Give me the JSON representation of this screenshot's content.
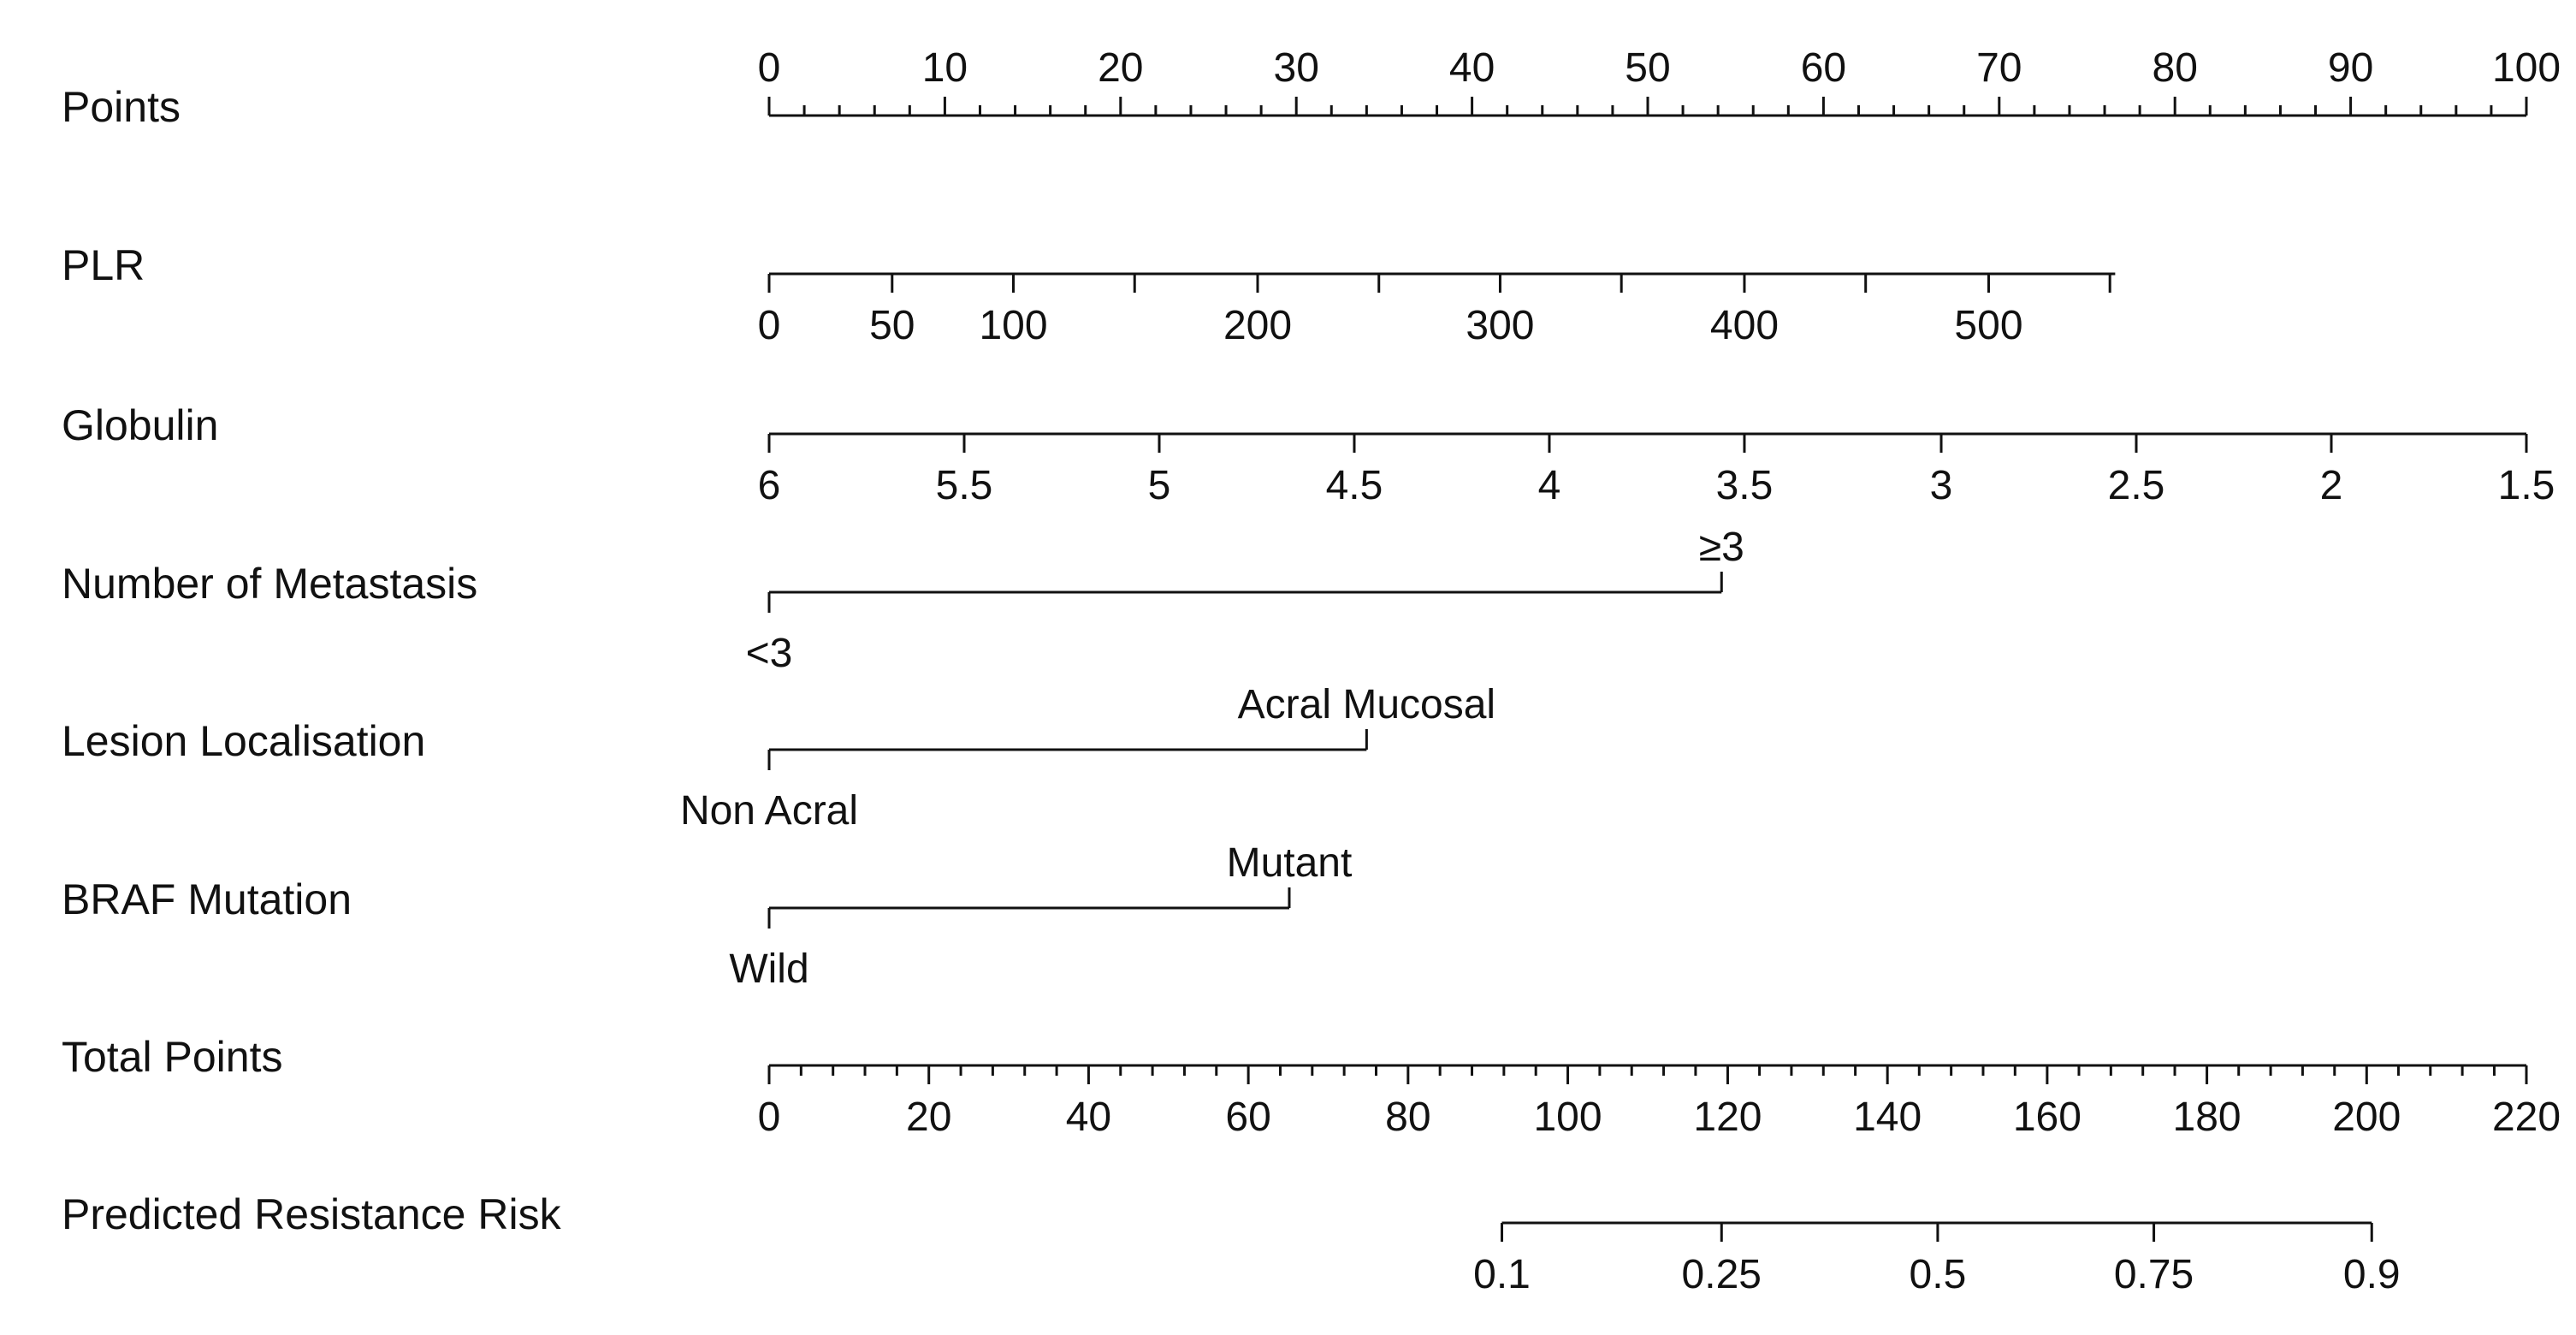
{
  "chart_data": {
    "type": "nomogram",
    "points_scale": {
      "min": 0,
      "max": 100
    },
    "rows": [
      {
        "id": "points",
        "label": "Points",
        "kind": "scale",
        "label_side": "above",
        "ticks": [
          {
            "value": 0,
            "points": 0,
            "label": "0"
          },
          {
            "value": 10,
            "points": 10,
            "label": "10"
          },
          {
            "value": 20,
            "points": 20,
            "label": "20"
          },
          {
            "value": 30,
            "points": 30,
            "label": "30"
          },
          {
            "value": 40,
            "points": 40,
            "label": "40"
          },
          {
            "value": 50,
            "points": 50,
            "label": "50"
          },
          {
            "value": 60,
            "points": 60,
            "label": "60"
          },
          {
            "value": 70,
            "points": 70,
            "label": "70"
          },
          {
            "value": 80,
            "points": 80,
            "label": "80"
          },
          {
            "value": 90,
            "points": 90,
            "label": "90"
          },
          {
            "value": 100,
            "points": 100,
            "label": "100"
          }
        ],
        "minor_step": 2
      },
      {
        "id": "plr",
        "label": "PLR",
        "kind": "scale",
        "label_side": "below",
        "line_end_points": 76.6,
        "ticks": [
          {
            "value": 0,
            "points": 0,
            "label": "0"
          },
          {
            "value": 50,
            "points": 7,
            "label": "50"
          },
          {
            "value": 100,
            "points": 13.9,
            "label": "100"
          },
          {
            "value": 150,
            "points": 20.8,
            "label": ""
          },
          {
            "value": 200,
            "points": 27.8,
            "label": "200"
          },
          {
            "value": 250,
            "points": 34.7,
            "label": ""
          },
          {
            "value": 300,
            "points": 41.6,
            "label": "300"
          },
          {
            "value": 350,
            "points": 48.5,
            "label": ""
          },
          {
            "value": 400,
            "points": 55.5,
            "label": "400"
          },
          {
            "value": 450,
            "points": 62.4,
            "label": ""
          },
          {
            "value": 500,
            "points": 69.4,
            "label": "500"
          },
          {
            "value": 550,
            "points": 76.3,
            "label": ""
          }
        ]
      },
      {
        "id": "globulin",
        "label": "Globulin",
        "kind": "scale",
        "label_side": "below",
        "ticks": [
          {
            "value": 6,
            "points": 0,
            "label": "6"
          },
          {
            "value": 5.5,
            "points": 11.1,
            "label": "5.5"
          },
          {
            "value": 5,
            "points": 22.2,
            "label": "5"
          },
          {
            "value": 4.5,
            "points": 33.3,
            "label": "4.5"
          },
          {
            "value": 4,
            "points": 44.4,
            "label": "4"
          },
          {
            "value": 3.5,
            "points": 55.5,
            "label": "3.5"
          },
          {
            "value": 3,
            "points": 66.7,
            "label": "3"
          },
          {
            "value": 2.5,
            "points": 77.8,
            "label": "2.5"
          },
          {
            "value": 2,
            "points": 88.9,
            "label": "2"
          },
          {
            "value": 1.5,
            "points": 100,
            "label": "1.5"
          }
        ]
      },
      {
        "id": "metastasis",
        "label": "Number of Metastasis",
        "kind": "categorical",
        "levels": [
          {
            "label": "<3",
            "points": 0,
            "side": "below"
          },
          {
            "label": "≥3",
            "points": 54.2,
            "side": "above"
          }
        ]
      },
      {
        "id": "lesion",
        "label": "Lesion Localisation",
        "kind": "categorical",
        "levels": [
          {
            "label": "Non Acral",
            "points": 0,
            "side": "below"
          },
          {
            "label": "Acral Mucosal",
            "points": 34,
            "side": "above"
          }
        ]
      },
      {
        "id": "braf",
        "label": "BRAF Mutation",
        "kind": "categorical",
        "levels": [
          {
            "label": "Wild",
            "points": 0,
            "side": "below"
          },
          {
            "label": "Mutant",
            "points": 29.6,
            "side": "above"
          }
        ]
      },
      {
        "id": "total",
        "label": "Total Points",
        "kind": "scale",
        "label_side": "below",
        "ticks": [
          {
            "value": 0,
            "points": 0,
            "label": "0"
          },
          {
            "value": 20,
            "points": 9.09,
            "label": "20"
          },
          {
            "value": 40,
            "points": 18.18,
            "label": "40"
          },
          {
            "value": 60,
            "points": 27.27,
            "label": "60"
          },
          {
            "value": 80,
            "points": 36.36,
            "label": "80"
          },
          {
            "value": 100,
            "points": 45.45,
            "label": "100"
          },
          {
            "value": 120,
            "points": 54.55,
            "label": "120"
          },
          {
            "value": 140,
            "points": 63.64,
            "label": "140"
          },
          {
            "value": 160,
            "points": 72.73,
            "label": "160"
          },
          {
            "value": 180,
            "points": 81.82,
            "label": "180"
          },
          {
            "value": 200,
            "points": 90.91,
            "label": "200"
          },
          {
            "value": 220,
            "points": 100,
            "label": "220"
          }
        ],
        "minor_step": 1.818
      },
      {
        "id": "risk",
        "label": "Predicted Resistance Risk",
        "kind": "scale",
        "label_side": "below",
        "ticks": [
          {
            "value": 0.1,
            "points": 41.7,
            "label": "0.1"
          },
          {
            "value": 0.25,
            "points": 54.2,
            "label": "0.25"
          },
          {
            "value": 0.5,
            "points": 66.5,
            "label": "0.5"
          },
          {
            "value": 0.75,
            "points": 78.8,
            "label": "0.75"
          },
          {
            "value": 0.9,
            "points": 91.2,
            "label": "0.9"
          }
        ]
      }
    ]
  }
}
